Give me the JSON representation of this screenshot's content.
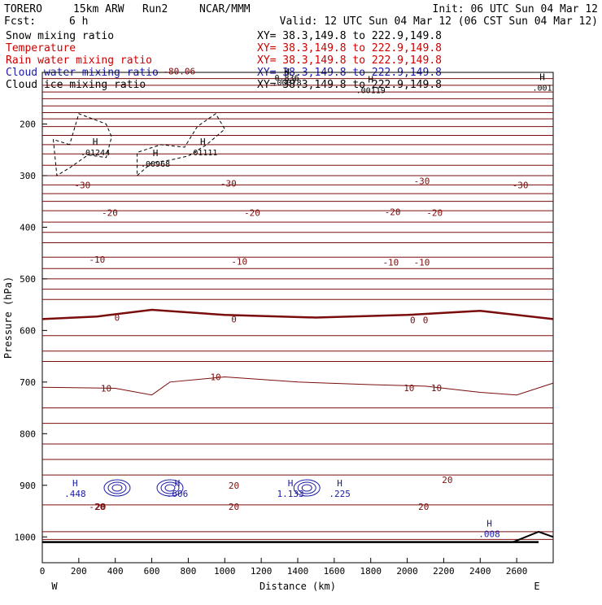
{
  "colors": {
    "black": "#000000",
    "temperature": "#7a0c0c",
    "rain_label": "#cc0000",
    "cloud_water": "#1a1aa6",
    "cloud_ice": "#000000"
  },
  "header": {
    "model": "TORERO",
    "resolution": "15km ARW",
    "run": "Run2",
    "center": "NCAR/MMM",
    "init": "Init: 06 UTC Sun 04 Mar 12",
    "fcst_label": "Fcst:",
    "fcst_value": "6 h",
    "valid": "Valid: 12 UTC Sun 04 Mar 12 (06 CST Sun 04 Mar 12)"
  },
  "legend": [
    {
      "field": "Snow mixing ratio",
      "xy": "XY=  38.3,149.8 to 222.9,149.8",
      "color": "#000000"
    },
    {
      "field": "Temperature",
      "xy": "XY=  38.3,149.8 to 222.9,149.8",
      "color": "#cc0000"
    },
    {
      "field": "Rain water mixing ratio",
      "xy": "XY=  38.3,149.8 to 222.9,149.8",
      "color": "#cc0000"
    },
    {
      "field": "Cloud water mixing ratio",
      "xy": "XY=  38.3,149.8 to 222.9,149.8",
      "color": "#1a1aa6"
    },
    {
      "field": "Cloud ice mixing ratio",
      "xy": "XY=  38.3,149.8 to 222.9,149.8",
      "color": "#000000"
    }
  ],
  "chart_data": {
    "type": "line",
    "chart_kind": "vertical cross-section",
    "xlabel": "Distance (km)",
    "ylabel": "Pressure (hPa)",
    "xlim": [
      0,
      2800
    ],
    "ylim": [
      1050,
      100
    ],
    "x_ticks": [
      0,
      200,
      400,
      600,
      800,
      1000,
      1200,
      1400,
      1600,
      1800,
      2000,
      2200,
      2400,
      2600
    ],
    "y_ticks": [
      200,
      300,
      400,
      500,
      600,
      700,
      800,
      900,
      1000
    ],
    "x_end_labels": {
      "left": "W",
      "right": "E"
    },
    "temperature_contours": {
      "series": [
        {
          "name": "-30",
          "x": [
            0,
            2800
          ],
          "y": [
            318,
            318
          ]
        },
        {
          "name": "-20",
          "x": [
            0,
            2800
          ],
          "y": [
            368,
            368
          ]
        },
        {
          "name": "-10",
          "x": [
            0,
            2800
          ],
          "y": [
            458,
            458
          ]
        },
        {
          "name": "0",
          "x": [
            0,
            300,
            600,
            1000,
            1500,
            2000,
            2400,
            2800
          ],
          "y": [
            578,
            573,
            560,
            570,
            575,
            570,
            562,
            578
          ]
        },
        {
          "name": "10",
          "x": [
            0,
            400,
            600,
            700,
            1000,
            1400,
            1800,
            2100,
            2400,
            2600,
            2800
          ],
          "y": [
            710,
            712,
            725,
            700,
            690,
            700,
            705,
            708,
            720,
            725,
            702
          ]
        },
        {
          "name": "20",
          "x": [
            0,
            1000,
            2000,
            2800
          ],
          "y": [
            938,
            938,
            938,
            938
          ]
        }
      ],
      "labels": [
        {
          "text": "-80.06",
          "x": 750,
          "y": 98
        },
        {
          "text": "-30",
          "x": 220,
          "y": 318
        },
        {
          "text": "-30",
          "x": 1020,
          "y": 315
        },
        {
          "text": "-30",
          "x": 2080,
          "y": 310
        },
        {
          "text": "-30",
          "x": 2620,
          "y": 318
        },
        {
          "text": "-20",
          "x": 370,
          "y": 372
        },
        {
          "text": "-20",
          "x": 1150,
          "y": 372
        },
        {
          "text": "-20",
          "x": 1920,
          "y": 370
        },
        {
          "text": "-20",
          "x": 2150,
          "y": 372
        },
        {
          "text": "-10",
          "x": 300,
          "y": 462
        },
        {
          "text": "-10",
          "x": 1080,
          "y": 466
        },
        {
          "text": "-10",
          "x": 1910,
          "y": 468
        },
        {
          "text": "-10",
          "x": 2080,
          "y": 468
        },
        {
          "text": "0",
          "x": 410,
          "y": 575
        },
        {
          "text": "0",
          "x": 1050,
          "y": 578
        },
        {
          "text": "0",
          "x": 2030,
          "y": 580
        },
        {
          "text": "0",
          "x": 2100,
          "y": 580
        },
        {
          "text": "10",
          "x": 350,
          "y": 712
        },
        {
          "text": "10",
          "x": 950,
          "y": 690
        },
        {
          "text": "10",
          "x": 2010,
          "y": 711
        },
        {
          "text": "10",
          "x": 2160,
          "y": 711
        },
        {
          "text": "20",
          "x": 320,
          "y": 941
        },
        {
          "text": "20",
          "x": 1050,
          "y": 900
        },
        {
          "text": "20",
          "x": 1050,
          "y": 941
        },
        {
          "text": "20",
          "x": 2090,
          "y": 941
        },
        {
          "text": "20",
          "x": 2220,
          "y": 889
        }
      ]
    },
    "snow_maxima": [
      {
        "label": "H",
        "value": ".01244",
        "x": 290,
        "y": 240
      },
      {
        "label": "H",
        "value": ".00968",
        "x": 620,
        "y": 262
      },
      {
        "label": "H",
        "value": ".01111",
        "x": 880,
        "y": 240
      },
      {
        "label": "H",
        "value": ".00078",
        "x": 1340,
        "y": 105
      },
      {
        "label": "H",
        "value": ".00119",
        "x": 1800,
        "y": 120
      },
      {
        "label": "H",
        "value": ".001",
        "x": 2740,
        "y": 115
      },
      {
        "label": "",
        "value": "0.836",
        "x": 1340,
        "y": 95
      }
    ],
    "cloud_water_maxima": [
      {
        "label": "H",
        "value": ".448",
        "x": 180,
        "y": 902
      },
      {
        "label": "H",
        "value": ".606",
        "x": 740,
        "y": 902
      },
      {
        "label": "H",
        "value": "1.133",
        "x": 1360,
        "y": 902
      },
      {
        "label": "H",
        "value": ".225",
        "x": 1630,
        "y": 902
      },
      {
        "label": "H",
        "value": ".008",
        "x": 2450,
        "y": 980
      }
    ],
    "cloud_water_label": {
      "text": "-20",
      "x": 300,
      "y": 941
    }
  }
}
